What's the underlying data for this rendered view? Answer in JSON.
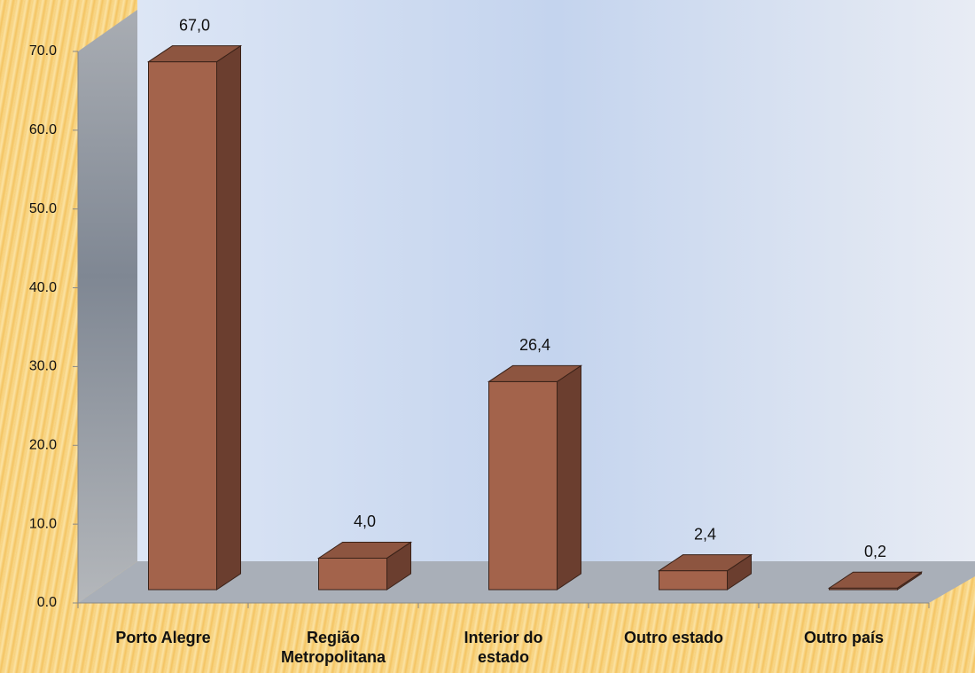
{
  "chart_data": {
    "type": "bar3d",
    "categories": [
      "Porto Alegre",
      "Região Metropolitana",
      "Interior do estado",
      "Outro estado",
      "Outro país"
    ],
    "values": [
      67.0,
      4.0,
      26.4,
      2.4,
      0.2
    ],
    "value_labels": [
      "67,0",
      "4,0",
      "26,4",
      "2,4",
      "0,2"
    ],
    "color": "#a3634b",
    "ylim": [
      0,
      70
    ],
    "yticks": [
      {
        "value": 0,
        "label": "0.0"
      },
      {
        "value": 10,
        "label": "10.0"
      },
      {
        "value": 20,
        "label": "20.0"
      },
      {
        "value": 30,
        "label": "30.0"
      },
      {
        "value": 40,
        "label": "40.0"
      },
      {
        "value": 50,
        "label": "50.0"
      },
      {
        "value": 60,
        "label": "60.0"
      },
      {
        "value": 70,
        "label": "70.0"
      }
    ]
  }
}
